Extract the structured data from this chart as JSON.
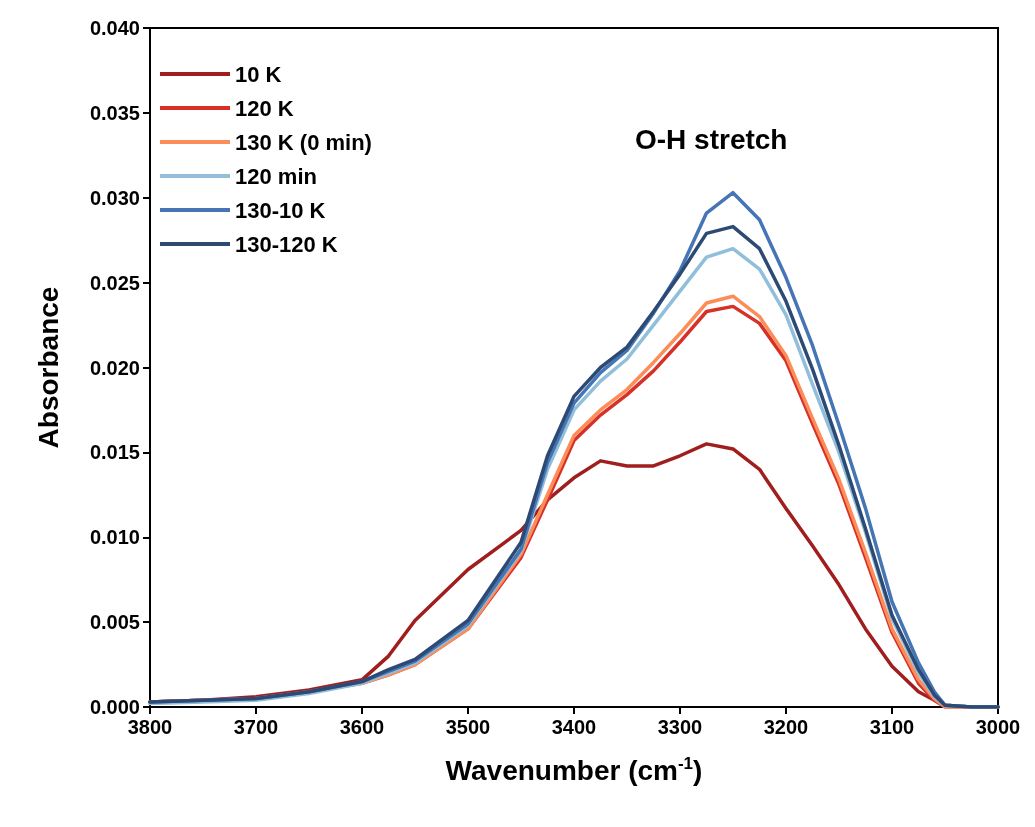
{
  "chart_data": {
    "type": "line",
    "xlabel": "Wavenumber (cm$^{-1}$)",
    "ylabel": "Absorbance",
    "annotations": [
      "O-H stretch"
    ],
    "x": [
      3800,
      3750,
      3700,
      3650,
      3600,
      3575,
      3550,
      3500,
      3450,
      3425,
      3400,
      3375,
      3350,
      3325,
      3300,
      3275,
      3250,
      3225,
      3200,
      3175,
      3150,
      3125,
      3100,
      3075,
      3060,
      3050,
      3025,
      3000
    ],
    "series": [
      {
        "name": "10 K",
        "color": "#a01e1e",
        "values": [
          0.0003,
          0.0004,
          0.0006,
          0.001,
          0.0016,
          0.003,
          0.0051,
          0.0081,
          0.0104,
          0.0122,
          0.0135,
          0.0145,
          0.0142,
          0.0142,
          0.0148,
          0.0155,
          0.0152,
          0.014,
          0.0117,
          0.0095,
          0.0072,
          0.0046,
          0.0024,
          0.0009,
          0.0004,
          0.0001,
          0,
          0
        ]
      },
      {
        "name": "120 K",
        "color": "#d73027",
        "values": [
          0.0003,
          0.0004,
          0.0005,
          0.0009,
          0.0014,
          0.0019,
          0.0025,
          0.0046,
          0.0088,
          0.0122,
          0.0157,
          0.0172,
          0.0184,
          0.0198,
          0.0215,
          0.0233,
          0.0236,
          0.0226,
          0.0204,
          0.0167,
          0.0131,
          0.0088,
          0.0044,
          0.0014,
          0.0004,
          0,
          0,
          0
        ]
      },
      {
        "name": "130 K (0 min)",
        "color": "#fc8d59",
        "values": [
          0.0003,
          0.0004,
          0.0005,
          0.0009,
          0.0014,
          0.0019,
          0.0025,
          0.0046,
          0.009,
          0.0125,
          0.016,
          0.0175,
          0.0187,
          0.0203,
          0.022,
          0.0238,
          0.0242,
          0.023,
          0.0207,
          0.017,
          0.0134,
          0.0091,
          0.0046,
          0.0016,
          0.0005,
          0,
          0,
          0
        ]
      },
      {
        "name": "120 min",
        "color": "#91bfdb",
        "values": [
          0.0002,
          0.0003,
          0.0004,
          0.0008,
          0.0014,
          0.002,
          0.0026,
          0.0048,
          0.0092,
          0.014,
          0.0175,
          0.0192,
          0.0205,
          0.0225,
          0.0245,
          0.0265,
          0.027,
          0.0258,
          0.0231,
          0.019,
          0.015,
          0.0103,
          0.0052,
          0.002,
          0.0006,
          0.0001,
          0,
          0
        ]
      },
      {
        "name": "130-10 K",
        "color": "#4575b4",
        "values": [
          0.0003,
          0.0004,
          0.0005,
          0.0009,
          0.0015,
          0.0021,
          0.0027,
          0.0049,
          0.0093,
          0.0144,
          0.0179,
          0.0197,
          0.021,
          0.0232,
          0.0257,
          0.0291,
          0.0303,
          0.0287,
          0.0253,
          0.0213,
          0.0166,
          0.0117,
          0.0062,
          0.0026,
          0.0009,
          0.0001,
          0,
          0
        ]
      },
      {
        "name": "130-120 K",
        "color": "#2c4a73",
        "values": [
          0.0003,
          0.0004,
          0.0005,
          0.0009,
          0.0015,
          0.0022,
          0.0028,
          0.0051,
          0.0097,
          0.0148,
          0.0183,
          0.02,
          0.0212,
          0.0233,
          0.0255,
          0.0279,
          0.0283,
          0.027,
          0.0239,
          0.0199,
          0.0154,
          0.0105,
          0.0054,
          0.0022,
          0.0007,
          0.0001,
          0,
          0
        ]
      }
    ],
    "xlim": [
      3800,
      3000
    ],
    "xticks": [
      3800,
      3700,
      3600,
      3500,
      3400,
      3300,
      3200,
      3100,
      3000
    ],
    "ylim": [
      0,
      0.04
    ],
    "yticks": [
      {
        "value": 0,
        "label": "0.000"
      },
      {
        "value": 0.005,
        "label": "0.005"
      },
      {
        "value": 0.01,
        "label": "0.010"
      },
      {
        "value": 0.015,
        "label": "0.015"
      },
      {
        "value": 0.02,
        "label": "0.020"
      },
      {
        "value": 0.025,
        "label": "0.025"
      },
      {
        "value": 0.03,
        "label": "0.030"
      },
      {
        "value": 0.035,
        "label": "0.035"
      },
      {
        "value": 0.04,
        "label": "0.040"
      }
    ],
    "grid": false,
    "legend": "top left",
    "marker": "none",
    "line_style": "solid"
  }
}
